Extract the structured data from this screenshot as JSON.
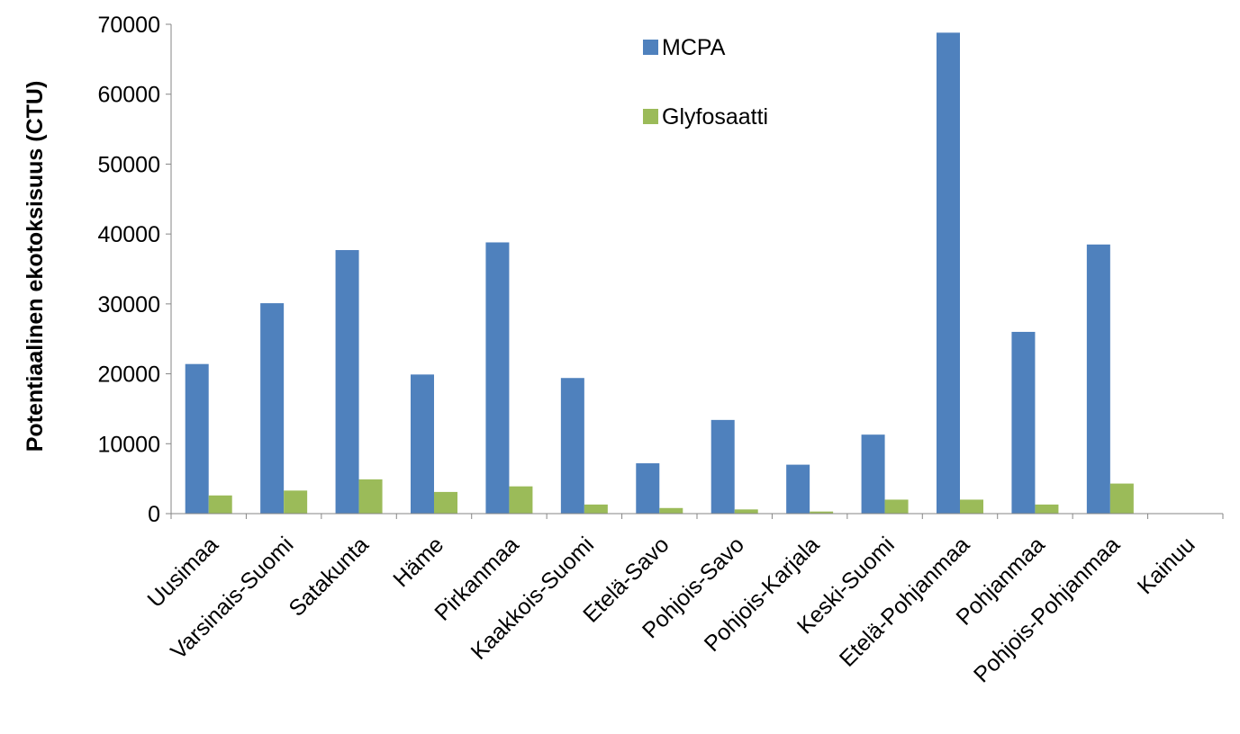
{
  "chart_data": {
    "type": "bar",
    "title": "",
    "xlabel": "",
    "ylabel": "Potentiaalinen ekotoksisuus (CTU)",
    "ylim": [
      0,
      70000
    ],
    "yticks": [
      0,
      10000,
      20000,
      30000,
      40000,
      50000,
      60000,
      70000
    ],
    "grid": false,
    "legend_position": "top-center",
    "categories": [
      "Uusimaa",
      "Varsinais-Suomi",
      "Satakunta",
      "Häme",
      "Pirkanmaa",
      "Kaakkois-Suomi",
      "Etelä-Savo",
      "Pohjois-Savo",
      "Pohjois-Karjala",
      "Keski-Suomi",
      "Etelä-Pohjanmaa",
      "Pohjanmaa",
      "Pohjois-Pohjanmaa",
      "Kainuu"
    ],
    "series": [
      {
        "name": "MCPA",
        "color": "#4f81bd",
        "values": [
          21400,
          30100,
          37700,
          19900,
          38800,
          19400,
          7200,
          13400,
          7000,
          11300,
          68800,
          26000,
          38500,
          0
        ]
      },
      {
        "name": "Glyfosaatti",
        "color": "#9bbb59",
        "values": [
          2600,
          3300,
          4900,
          3100,
          3900,
          1300,
          800,
          600,
          300,
          2000,
          2000,
          1300,
          4300,
          0
        ]
      }
    ]
  }
}
